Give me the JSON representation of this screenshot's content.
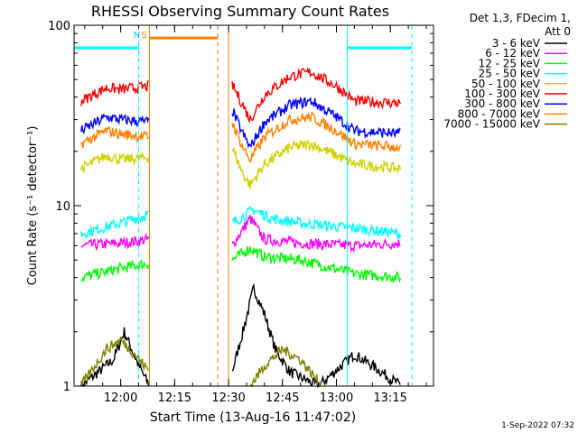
{
  "chart_data": {
    "type": "line",
    "title": "RHESSI Observing Summary Count Rates",
    "xlabel": "Start Time (13-Aug-16 11:47:02)",
    "ylabel": "Count Rate (s⁻¹ detector⁻¹)",
    "yscale": "log",
    "ylim": [
      1,
      100
    ],
    "xlim": [
      "11:47:02",
      "13:27:00"
    ],
    "x_ticks": [
      "12:00",
      "12:15",
      "12:30",
      "12:45",
      "13:00",
      "13:15"
    ],
    "y_ticks": [
      "1",
      "10",
      "100"
    ],
    "legend_header": [
      "Det 1,3, FDecim 1,",
      "Att 0"
    ],
    "footer_date": "1-Sep-2022 07:32",
    "series": [
      {
        "name": "3 - 6 keV",
        "color": "#000000",
        "segments": [
          {
            "points": [
              [
                "11:49",
                1.0
              ],
              [
                "11:58",
                1.4
              ],
              [
                "12:01",
                2.0
              ],
              [
                "12:05",
                1.3
              ],
              [
                "12:08",
                1.0
              ]
            ]
          },
          {
            "points": [
              [
                "12:31",
                1.2
              ],
              [
                "12:34",
                2.0
              ],
              [
                "12:37",
                3.5
              ],
              [
                "12:40",
                2.5
              ],
              [
                "12:43",
                1.6
              ],
              [
                "12:47",
                1.2
              ],
              [
                "12:55",
                1.0
              ],
              [
                "13:05",
                1.5
              ],
              [
                "13:10",
                1.3
              ],
              [
                "13:18",
                1.0
              ]
            ]
          }
        ]
      },
      {
        "name": "6 - 12 keV",
        "color": "#ff00ff",
        "segments": [
          {
            "points": [
              [
                "11:49",
                6.0
              ],
              [
                "12:00",
                6.2
              ],
              [
                "12:08",
                6.5
              ]
            ]
          },
          {
            "points": [
              [
                "12:31",
                6.0
              ],
              [
                "12:36",
                8.5
              ],
              [
                "12:40",
                6.5
              ],
              [
                "12:50",
                6.2
              ],
              [
                "13:05",
                6.0
              ],
              [
                "13:18",
                6.2
              ]
            ]
          }
        ]
      },
      {
        "name": "12 - 25 keV",
        "color": "#00ff00",
        "segments": [
          {
            "points": [
              [
                "11:49",
                4.0
              ],
              [
                "12:00",
                4.5
              ],
              [
                "12:08",
                4.8
              ]
            ]
          },
          {
            "points": [
              [
                "12:31",
                5.0
              ],
              [
                "12:36",
                5.8
              ],
              [
                "12:40",
                5.2
              ],
              [
                "12:50",
                5.0
              ],
              [
                "13:05",
                4.2
              ],
              [
                "13:18",
                4.0
              ]
            ]
          }
        ]
      },
      {
        "name": "25 - 50 keV",
        "color": "#00ffff",
        "segments": [
          {
            "points": [
              [
                "11:49",
                7.0
              ],
              [
                "12:00",
                8.0
              ],
              [
                "12:08",
                9.0
              ]
            ]
          },
          {
            "points": [
              [
                "12:31",
                8.0
              ],
              [
                "12:37",
                9.5
              ],
              [
                "12:42",
                8.5
              ],
              [
                "12:50",
                8.0
              ],
              [
                "13:05",
                7.5
              ],
              [
                "13:18",
                7.0
              ]
            ]
          }
        ]
      },
      {
        "name": "50 - 100 keV",
        "color": "#d0d000",
        "segments": [
          {
            "points": [
              [
                "11:49",
                16.0
              ],
              [
                "11:56",
                19.0
              ],
              [
                "12:00",
                18.0
              ],
              [
                "12:08",
                18.5
              ]
            ]
          },
          {
            "points": [
              [
                "12:31",
                21.0
              ],
              [
                "12:34",
                15.0
              ],
              [
                "12:36",
                13.0
              ],
              [
                "12:40",
                17.0
              ],
              [
                "12:47",
                21.0
              ],
              [
                "12:53",
                22.0
              ],
              [
                "13:00",
                19.0
              ],
              [
                "13:05",
                17.0
              ],
              [
                "13:18",
                16.0
              ]
            ]
          }
        ]
      },
      {
        "name": "100 - 300 keV",
        "color": "#ff0000",
        "segments": [
          {
            "points": [
              [
                "11:49",
                38.0
              ],
              [
                "11:56",
                45.0
              ],
              [
                "12:00",
                44.0
              ],
              [
                "12:08",
                46.0
              ]
            ]
          },
          {
            "points": [
              [
                "12:31",
                47.0
              ],
              [
                "12:34",
                36.0
              ],
              [
                "12:36",
                30.0
              ],
              [
                "12:40",
                41.0
              ],
              [
                "12:47",
                52.0
              ],
              [
                "12:53",
                55.0
              ],
              [
                "13:00",
                46.0
              ],
              [
                "13:05",
                38.0
              ],
              [
                "13:18",
                37.0
              ]
            ]
          }
        ]
      },
      {
        "name": "300 - 800 keV",
        "color": "#0000ff",
        "segments": [
          {
            "points": [
              [
                "11:49",
                26.0
              ],
              [
                "11:56",
                31.0
              ],
              [
                "12:00",
                30.0
              ],
              [
                "12:08",
                29.0
              ]
            ]
          },
          {
            "points": [
              [
                "12:31",
                34.0
              ],
              [
                "12:34",
                25.0
              ],
              [
                "12:36",
                21.0
              ],
              [
                "12:40",
                29.0
              ],
              [
                "12:47",
                36.0
              ],
              [
                "12:53",
                38.0
              ],
              [
                "13:00",
                31.0
              ],
              [
                "13:05",
                26.0
              ],
              [
                "13:18",
                25.0
              ]
            ]
          }
        ]
      },
      {
        "name": "800 - 7000 keV",
        "color": "#ff8000",
        "segments": [
          {
            "points": [
              [
                "11:49",
                22.0
              ],
              [
                "11:56",
                26.0
              ],
              [
                "12:00",
                25.0
              ],
              [
                "12:08",
                24.0
              ]
            ]
          },
          {
            "points": [
              [
                "12:31",
                29.0
              ],
              [
                "12:34",
                21.0
              ],
              [
                "12:36",
                18.0
              ],
              [
                "12:40",
                24.0
              ],
              [
                "12:47",
                30.0
              ],
              [
                "12:53",
                31.0
              ],
              [
                "13:00",
                26.0
              ],
              [
                "13:05",
                22.0
              ],
              [
                "13:18",
                21.0
              ]
            ]
          }
        ]
      },
      {
        "name": "7000 - 15000 keV",
        "color": "#808000",
        "segments": [
          {
            "points": [
              [
                "11:49",
                1.0
              ],
              [
                "11:56",
                1.6
              ],
              [
                "12:00",
                1.8
              ],
              [
                "12:04",
                1.5
              ],
              [
                "12:08",
                1.2
              ]
            ]
          },
          {
            "points": [
              [
                "12:36",
                1.0
              ],
              [
                "12:40",
                1.3
              ],
              [
                "12:45",
                1.6
              ],
              [
                "12:50",
                1.4
              ],
              [
                "12:56",
                1.0
              ]
            ]
          }
        ]
      }
    ],
    "annotations": [
      {
        "label": "N",
        "time": "12:05",
        "color": "#00c8ff"
      },
      {
        "label": "S",
        "time": "12:07",
        "color": "#ff8000"
      }
    ],
    "intervals": [
      {
        "name": "night",
        "color": "#00ffff",
        "start": "11:47",
        "end": "12:05",
        "level": 75
      },
      {
        "name": "saa",
        "color": "#ff8000",
        "start": "12:08",
        "end": "12:27",
        "level": 85
      },
      {
        "name": "night",
        "color": "#00ffff",
        "start": "13:03",
        "end": "13:21",
        "level": 75
      }
    ],
    "vlines": [
      {
        "time": "12:05",
        "color": "#00ffff",
        "style": "dashed"
      },
      {
        "time": "12:08",
        "color": "#ff8000",
        "style": "solid"
      },
      {
        "time": "12:27",
        "color": "#ff8000",
        "style": "dashed"
      },
      {
        "time": "12:30",
        "color": "#ff8000",
        "style": "solid"
      },
      {
        "time": "13:03",
        "color": "#00ffff",
        "style": "solid"
      },
      {
        "time": "13:21",
        "color": "#00ffff",
        "style": "dashed"
      }
    ]
  }
}
